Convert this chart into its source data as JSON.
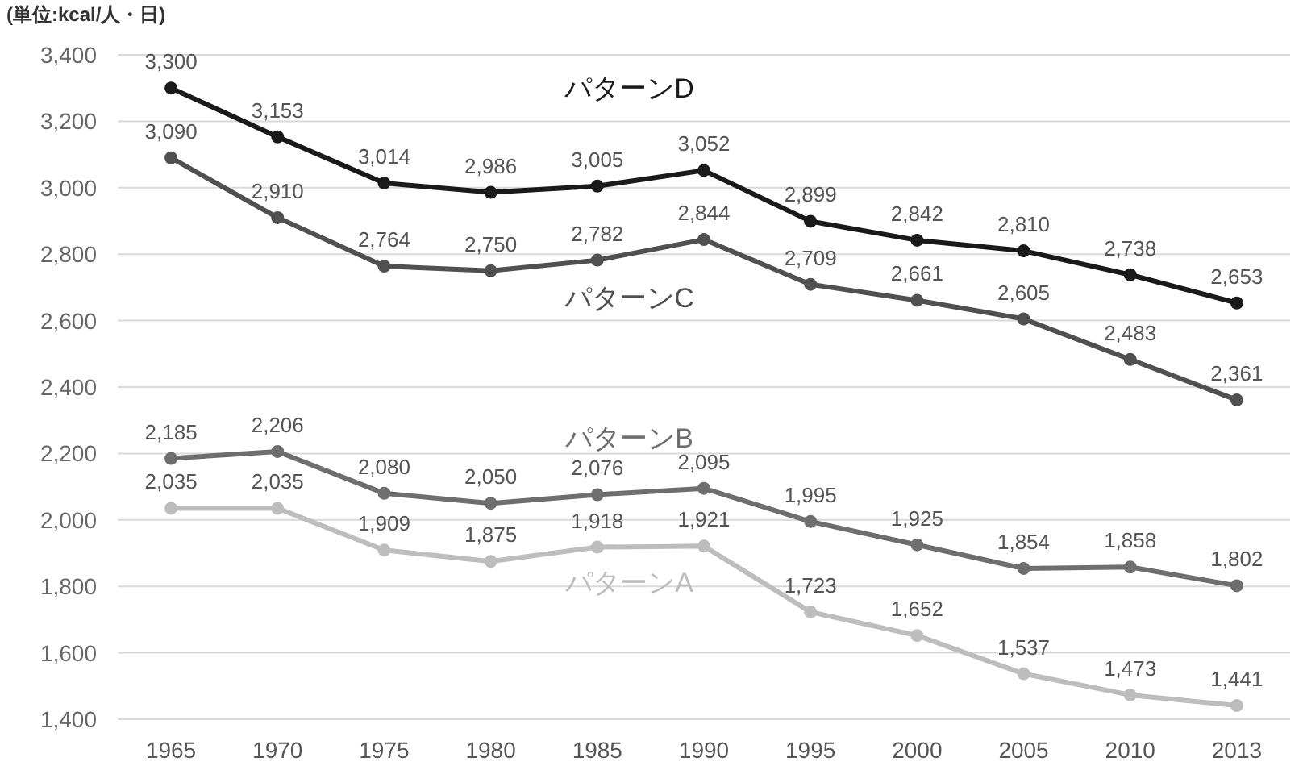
{
  "chart_data": {
    "type": "line",
    "title": "(単位:kcal/人・日)",
    "categories": [
      "1965",
      "1970",
      "1975",
      "1980",
      "1985",
      "1990",
      "1995",
      "2000",
      "2005",
      "2010",
      "2013"
    ],
    "ylim": [
      1400,
      3400
    ],
    "yticks": [
      {
        "value": 1400,
        "label": "1,400"
      },
      {
        "value": 1600,
        "label": "1,600"
      },
      {
        "value": 1800,
        "label": "1,800"
      },
      {
        "value": 2000,
        "label": "2,000"
      },
      {
        "value": 2200,
        "label": "2,200"
      },
      {
        "value": 2400,
        "label": "2,400"
      },
      {
        "value": 2600,
        "label": "2,600"
      },
      {
        "value": 2800,
        "label": "2,800"
      },
      {
        "value": 3000,
        "label": "3,000"
      },
      {
        "value": 3200,
        "label": "3,200"
      },
      {
        "value": 3400,
        "label": "3,400"
      }
    ],
    "grid": "y",
    "marker": "circle",
    "line_style": "solid",
    "series": [
      {
        "name": "パターンD",
        "color": "#1a1a1a",
        "values": [
          3300,
          3153,
          3014,
          2986,
          3005,
          3052,
          2899,
          2842,
          2810,
          2738,
          2653
        ],
        "value_labels": [
          "3,300",
          "3,153",
          "3,014",
          "2,986",
          "3,005",
          "3,052",
          "2,899",
          "2,842",
          "2,810",
          "2,738",
          "2,653"
        ]
      },
      {
        "name": "パターンC",
        "color": "#505050",
        "values": [
          3090,
          2910,
          2764,
          2750,
          2782,
          2844,
          2709,
          2661,
          2605,
          2483,
          2361
        ],
        "value_labels": [
          "3,090",
          "2,910",
          "2,764",
          "2,750",
          "2,782",
          "2,844",
          "2,709",
          "2,661",
          "2,605",
          "2,483",
          "2,361"
        ]
      },
      {
        "name": "パターンB",
        "color": "#6e6e6e",
        "values": [
          2185,
          2206,
          2080,
          2050,
          2076,
          2095,
          1995,
          1925,
          1854,
          1858,
          1802
        ],
        "value_labels": [
          "2,185",
          "2,206",
          "2,080",
          "2,050",
          "2,076",
          "2,095",
          "1,995",
          "1,925",
          "1,854",
          "1,858",
          "1,802"
        ]
      },
      {
        "name": "パターンA",
        "color": "#bdbdbd",
        "values": [
          2035,
          2035,
          1909,
          1875,
          1918,
          1921,
          1723,
          1652,
          1537,
          1473,
          1441
        ],
        "value_labels": [
          "2,035",
          "2,035",
          "1,909",
          "1,875",
          "1,918",
          "1,921",
          "1,723",
          "1,652",
          "1,537",
          "1,473",
          "1,441"
        ]
      }
    ]
  }
}
